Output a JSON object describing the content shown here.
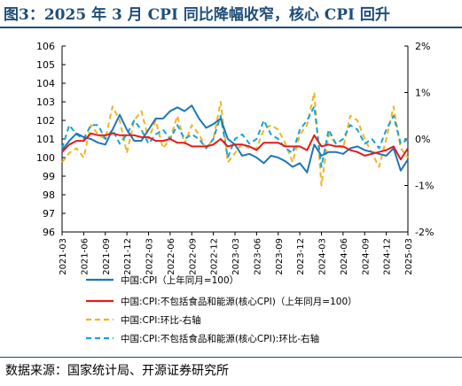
{
  "title": "图3：2025 年 3 月 CPI 同比降幅收窄，核心 CPI 回升",
  "source": "数据来源：国家统计局、开源证券研究所",
  "chart_data": {
    "type": "line",
    "x": [
      "2021-03",
      "2021-04",
      "2021-05",
      "2021-06",
      "2021-07",
      "2021-08",
      "2021-09",
      "2021-10",
      "2021-11",
      "2021-12",
      "2022-01",
      "2022-02",
      "2022-03",
      "2022-04",
      "2022-05",
      "2022-06",
      "2022-07",
      "2022-08",
      "2022-09",
      "2022-10",
      "2022-11",
      "2022-12",
      "2023-01",
      "2023-02",
      "2023-03",
      "2023-04",
      "2023-05",
      "2023-06",
      "2023-07",
      "2023-08",
      "2023-09",
      "2023-10",
      "2023-11",
      "2023-12",
      "2024-01",
      "2024-02",
      "2024-03",
      "2024-04",
      "2024-05",
      "2024-06",
      "2024-07",
      "2024-08",
      "2024-09",
      "2024-10",
      "2024-11",
      "2024-12",
      "2025-01",
      "2025-02",
      "2025-03"
    ],
    "x_tick_labels": [
      "2021-03",
      "2021-06",
      "2021-09",
      "2021-12",
      "2022-03",
      "2022-06",
      "2022-09",
      "2022-12",
      "2023-03",
      "2023-06",
      "2023-09",
      "2023-12",
      "2024-03",
      "2024-06",
      "2024-09",
      "2024-12",
      "2025-03"
    ],
    "y_left": {
      "ylim": [
        96,
        106
      ],
      "ticks": [
        "96",
        "97",
        "98",
        "99",
        "100",
        "101",
        "102",
        "103",
        "104",
        "105",
        "106"
      ]
    },
    "y_right": {
      "ylim": [
        -2,
        2
      ],
      "ticks": [
        "-2%",
        "-1%",
        "0%",
        "1%",
        "2%"
      ]
    },
    "series": [
      {
        "name": "中国:CPI（上年同月=100）",
        "axis": "left",
        "color": "#1f77b4",
        "style": "solid",
        "values": [
          100.4,
          100.9,
          101.3,
          101.1,
          101.0,
          100.8,
          100.7,
          101.5,
          102.3,
          101.5,
          100.9,
          100.9,
          101.5,
          102.1,
          102.1,
          102.5,
          102.7,
          102.5,
          102.8,
          102.1,
          101.6,
          101.8,
          102.1,
          101.0,
          100.7,
          100.1,
          100.2,
          100.0,
          99.7,
          100.1,
          100.0,
          99.8,
          99.5,
          99.7,
          99.2,
          100.7,
          100.1,
          100.3,
          100.3,
          100.2,
          100.5,
          100.6,
          100.4,
          100.3,
          100.2,
          100.1,
          100.5,
          99.3,
          99.9
        ]
      },
      {
        "name": "中国:CPI:不包括食品和能源(核心CPI)（上年同月=100）",
        "axis": "left",
        "color": "#e41a1c",
        "style": "solid",
        "values": [
          100.3,
          100.7,
          100.9,
          100.9,
          101.3,
          101.2,
          101.2,
          101.3,
          101.2,
          101.2,
          101.2,
          101.1,
          101.1,
          100.9,
          100.9,
          101.0,
          100.8,
          100.8,
          100.6,
          100.6,
          100.6,
          100.7,
          101.0,
          100.6,
          100.7,
          100.7,
          100.6,
          100.4,
          100.8,
          100.8,
          100.8,
          100.6,
          100.6,
          100.6,
          100.4,
          101.2,
          100.6,
          100.7,
          100.6,
          100.6,
          100.4,
          100.3,
          100.1,
          100.2,
          100.3,
          100.4,
          100.6,
          99.9,
          100.5
        ]
      },
      {
        "name": "中国:CPI:环比-右轴",
        "axis": "right",
        "color": "#f0b323",
        "style": "dashed",
        "values": [
          -0.5,
          -0.3,
          -0.2,
          -0.4,
          0.3,
          0.1,
          0.0,
          0.7,
          0.4,
          -0.3,
          0.4,
          0.6,
          0.0,
          0.4,
          -0.2,
          0.0,
          0.5,
          -0.1,
          0.3,
          0.1,
          -0.2,
          0.0,
          0.8,
          -0.5,
          -0.3,
          -0.1,
          -0.2,
          -0.2,
          0.2,
          0.3,
          0.2,
          -0.1,
          -0.5,
          0.1,
          0.3,
          1.0,
          -1.0,
          0.1,
          -0.1,
          -0.2,
          0.5,
          0.4,
          0.0,
          -0.3,
          -0.6,
          0.0,
          0.7,
          -0.2,
          -0.4
        ]
      },
      {
        "name": "中国:CPI:不包括食品和能源(核心CPI):环比-右轴",
        "axis": "right",
        "color": "#17a3d6",
        "style": "dashed",
        "values": [
          -0.2,
          0.3,
          0.1,
          0.0,
          0.3,
          0.3,
          0.0,
          0.2,
          -0.1,
          0.1,
          0.4,
          0.2,
          -0.1,
          0.1,
          0.2,
          0.0,
          0.3,
          0.0,
          0.1,
          0.0,
          -0.2,
          0.0,
          0.5,
          -0.4,
          0.0,
          0.1,
          -0.1,
          0.0,
          0.4,
          0.1,
          0.0,
          -0.2,
          -0.3,
          0.2,
          0.4,
          0.7,
          -0.6,
          0.2,
          -0.1,
          0.0,
          0.3,
          0.2,
          -0.1,
          0.0,
          -0.2,
          0.2,
          0.5,
          -0.1,
          0.0
        ]
      }
    ],
    "legend_position": "bottom",
    "grid": false
  }
}
